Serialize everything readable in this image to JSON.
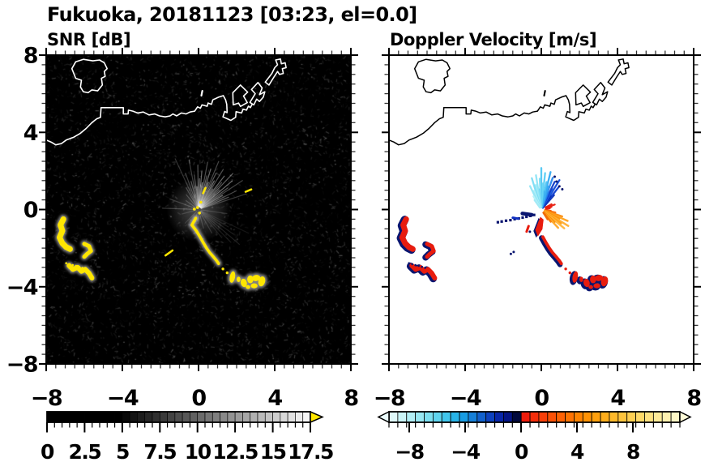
{
  "chart_data": {
    "type": "radar_ppi_pair",
    "suptitle": "Fukuoka, 20181123 [03:23, el=0.0]",
    "site": "Fukuoka",
    "date": "20181123",
    "time": "03:23",
    "elevation": "0.0",
    "panels": [
      {
        "id": "snr",
        "title": "SNR [dB]",
        "background": "#000000",
        "coast_color": "#ffffff",
        "echo_color": "#ffe600",
        "noise": "dark speckle",
        "streak_color": "#ffffff"
      },
      {
        "id": "velocity",
        "title": "Doppler Velocity [m/s]",
        "background": "#ffffff",
        "coast_color": "#000000",
        "echo_red": "#e81c0e",
        "echo_navy": "#0a1670",
        "fan_orange": "#ff9c14",
        "fan_blue": "#2888ee"
      }
    ],
    "axes": {
      "xlim": [
        -8,
        8
      ],
      "ylim": [
        -8,
        8
      ],
      "major_ticks": [
        -8,
        -4,
        0,
        4,
        8
      ],
      "minor_step": 0.5,
      "x_tick_labels": [
        "−8",
        "−4",
        "0",
        "4",
        "8"
      ],
      "y_tick_labels": [
        "8",
        "4",
        "0",
        "−4",
        "−8"
      ]
    },
    "radar_center": [
      0,
      0
    ],
    "colorbars": [
      {
        "panel": "snr",
        "min": 0,
        "max": 17.5,
        "segments": 35,
        "tick_values": [
          0,
          2.5,
          5,
          7.5,
          10,
          12.5,
          15,
          17.5
        ],
        "tick_labels": [
          "0",
          "2.5",
          "5",
          "7.5",
          "10",
          "12.5",
          "15",
          "17.5"
        ],
        "ramp": "grayscale black to white",
        "over_arrow_color": "#ffe600"
      },
      {
        "panel": "velocity",
        "min": -9.5,
        "max": 11,
        "segments": 33,
        "tick_values": [
          -8,
          -4,
          0,
          4,
          8
        ],
        "tick_labels": [
          "−8",
          "−4",
          "0",
          "4",
          "8"
        ],
        "cool_colors": [
          "#dff9fa",
          "#c9f4f7",
          "#b1eef5",
          "#97e7f2",
          "#7cdff0",
          "#5fd4ee",
          "#41c6ec",
          "#27b4e8",
          "#189ce2",
          "#157fd8",
          "#1160cc",
          "#0d41be",
          "#0826a8",
          "#041484",
          "#01093c"
        ],
        "warm_colors": [
          "#ef1c0c",
          "#f42d0a",
          "#f93f08",
          "#fc5106",
          "#fe6204",
          "#ff7302",
          "#ff8300",
          "#ff9204",
          "#ffa00d",
          "#ffad1a",
          "#ffb92a",
          "#ffc43d",
          "#ffcf52",
          "#ffd968",
          "#ffe280",
          "#ffea98",
          "#fff1b0",
          "#fff7c6"
        ],
        "under_arrow_color": "#eafbfc",
        "over_arrow_color": "#fffbd8"
      }
    ],
    "coast_main": [
      [
        -8,
        3.6
      ],
      [
        -7.75,
        3.5
      ],
      [
        -7.5,
        3.35
      ],
      [
        -7.2,
        3.42
      ],
      [
        -6.95,
        3.6
      ],
      [
        -6.55,
        3.75
      ],
      [
        -6.2,
        3.95
      ],
      [
        -5.9,
        4.2
      ],
      [
        -5.6,
        4.5
      ],
      [
        -5.35,
        4.7
      ],
      [
        -5.15,
        4.78
      ],
      [
        -5.12,
        5.28
      ],
      [
        -3.95,
        5.28
      ],
      [
        -3.95,
        4.95
      ],
      [
        -3.7,
        4.95
      ],
      [
        -3.68,
        5.15
      ],
      [
        -3.45,
        5.1
      ],
      [
        -3.2,
        5.0
      ],
      [
        -2.9,
        5.05
      ],
      [
        -2.6,
        4.9
      ],
      [
        -2.3,
        4.95
      ],
      [
        -2.05,
        4.85
      ],
      [
        -1.75,
        4.8
      ],
      [
        -1.5,
        4.85
      ],
      [
        -1.35,
        4.95
      ],
      [
        -1.15,
        4.85
      ],
      [
        -0.9,
        5.0
      ],
      [
        -0.65,
        4.95
      ],
      [
        -0.45,
        5.05
      ],
      [
        -0.2,
        5.1
      ],
      [
        -0.05,
        5.32
      ],
      [
        0.1,
        5.25
      ],
      [
        0.18,
        5.42
      ],
      [
        0.45,
        5.35
      ],
      [
        0.5,
        5.52
      ],
      [
        0.68,
        5.45
      ],
      [
        0.75,
        5.68
      ],
      [
        1.05,
        5.82
      ],
      [
        1.3,
        5.9
      ],
      [
        1.42,
        5.68
      ],
      [
        1.48,
        5.45
      ],
      [
        1.5,
        5.02
      ],
      [
        1.37,
        5.08
      ],
      [
        1.28,
        4.8
      ],
      [
        1.7,
        4.62
      ],
      [
        1.95,
        4.78
      ],
      [
        1.97,
        5.07
      ],
      [
        2.26,
        5.0
      ],
      [
        2.34,
        5.2
      ],
      [
        2.52,
        5.15
      ],
      [
        2.62,
        5.36
      ],
      [
        2.72,
        5.28
      ],
      [
        2.82,
        5.46
      ]
    ],
    "coast_island": [
      [
        -6.65,
        7.3
      ],
      [
        -6.45,
        7.65
      ],
      [
        -6.05,
        7.78
      ],
      [
        -5.55,
        7.7
      ],
      [
        -5.2,
        7.75
      ],
      [
        -4.95,
        7.6
      ],
      [
        -4.8,
        7.3
      ],
      [
        -4.95,
        7.15
      ],
      [
        -4.9,
        6.9
      ],
      [
        -5.1,
        6.8
      ],
      [
        -5.05,
        6.45
      ],
      [
        -5.3,
        6.15
      ],
      [
        -5.6,
        6.2
      ],
      [
        -5.8,
        6.05
      ],
      [
        -6.05,
        6.1
      ],
      [
        -6.2,
        6.35
      ],
      [
        -6.15,
        6.7
      ],
      [
        -6.45,
        6.8
      ],
      [
        -6.65,
        7.3
      ]
    ],
    "coast_harbor": [
      [
        [
          1.82,
          5.42
        ],
        [
          1.8,
          6.05
        ],
        [
          2.2,
          6.45
        ],
        [
          2.58,
          6.08
        ],
        [
          2.36,
          5.88
        ],
        [
          2.56,
          5.54
        ],
        [
          2.2,
          5.34
        ],
        [
          2.1,
          5.52
        ],
        [
          1.82,
          5.42
        ]
      ],
      [
        [
          2.7,
          5.55
        ],
        [
          2.98,
          6.0
        ],
        [
          2.78,
          6.22
        ],
        [
          3.12,
          6.58
        ],
        [
          3.34,
          6.3
        ],
        [
          3.2,
          5.95
        ],
        [
          3.48,
          6.1
        ],
        [
          3.4,
          5.82
        ],
        [
          3.2,
          5.6
        ],
        [
          3.05,
          5.72
        ],
        [
          2.9,
          5.42
        ],
        [
          2.7,
          5.55
        ]
      ],
      [
        [
          3.5,
          6.6
        ],
        [
          3.85,
          7.05
        ],
        [
          4.0,
          7.35
        ],
        [
          4.15,
          7.5
        ],
        [
          4.05,
          7.75
        ],
        [
          4.3,
          7.8
        ],
        [
          4.35,
          7.55
        ],
        [
          4.55,
          7.6
        ],
        [
          4.6,
          7.35
        ],
        [
          4.4,
          7.3
        ],
        [
          4.45,
          7.05
        ],
        [
          4.25,
          7.0
        ],
        [
          4.15,
          7.15
        ],
        [
          3.95,
          6.85
        ],
        [
          3.7,
          6.45
        ],
        [
          3.5,
          6.6
        ]
      ]
    ],
    "coast_islet": [
      [
        0.15,
        5.9
      ],
      [
        0.2,
        6.15
      ]
    ],
    "snr_fan_streaks": [
      [
        18,
        2.6,
        0.22
      ],
      [
        22,
        1.7,
        0.32
      ],
      [
        26,
        2.2,
        0.28
      ],
      [
        30,
        1.45,
        0.38
      ],
      [
        33,
        2.75,
        0.26
      ],
      [
        36,
        1.9,
        0.32
      ],
      [
        40,
        2.3,
        0.42
      ],
      [
        43,
        1.5,
        0.3
      ],
      [
        46,
        2.6,
        0.36
      ],
      [
        49,
        1.85,
        0.3
      ],
      [
        52,
        2.2,
        0.4
      ],
      [
        55,
        1.3,
        0.34
      ],
      [
        58,
        2.45,
        0.3
      ],
      [
        61,
        1.7,
        0.44
      ],
      [
        64,
        2.1,
        0.34
      ],
      [
        67,
        2.7,
        0.28
      ],
      [
        70,
        1.5,
        0.5
      ],
      [
        73,
        2.2,
        0.4
      ],
      [
        76,
        1.8,
        0.34
      ],
      [
        79,
        2.5,
        0.3
      ],
      [
        82,
        1.4,
        0.44
      ],
      [
        85,
        2.0,
        0.4
      ],
      [
        88,
        1.6,
        0.36
      ],
      [
        91,
        2.3,
        0.34
      ],
      [
        94,
        1.2,
        0.4
      ],
      [
        97,
        1.8,
        0.3
      ],
      [
        101,
        2.6,
        0.24
      ],
      [
        105,
        1.5,
        0.3
      ],
      [
        110,
        2.0,
        0.24
      ],
      [
        115,
        2.9,
        0.2
      ],
      [
        120,
        1.3,
        0.24
      ],
      [
        130,
        1.0,
        0.2
      ],
      [
        145,
        0.8,
        0.18
      ],
      [
        160,
        1.6,
        0.18
      ],
      [
        178,
        1.9,
        0.2
      ],
      [
        195,
        0.9,
        0.14
      ],
      [
        225,
        1.0,
        0.12
      ],
      [
        250,
        0.8,
        0.14
      ],
      [
        270,
        0.7,
        0.12
      ],
      [
        285,
        1.0,
        0.16
      ],
      [
        300,
        1.4,
        0.14
      ],
      [
        320,
        2.8,
        0.12
      ],
      [
        325,
        2.2,
        0.1
      ],
      [
        315,
        2.4,
        0.1
      ],
      [
        330,
        1.8,
        0.1
      ],
      [
        310,
        1.9,
        0.1
      ],
      [
        335,
        2.9,
        0.08
      ],
      [
        352,
        1.5,
        0.14
      ]
    ],
    "vel_cool_streaks": [
      [
        48,
        1.0,
        "#0a2cb0"
      ],
      [
        52,
        1.45,
        "#0d3fd0"
      ],
      [
        55,
        0.85,
        "#0a28a8"
      ],
      [
        58,
        1.8,
        "#1048d6"
      ],
      [
        61,
        1.2,
        "#1a5ee2"
      ],
      [
        64,
        1.6,
        "#0f3cc8"
      ],
      [
        67,
        0.95,
        "#2070e8"
      ],
      [
        70,
        1.75,
        "#2888ee"
      ],
      [
        73,
        1.25,
        "#38a2f0"
      ],
      [
        76,
        2.0,
        "#34aaf2"
      ],
      [
        79,
        1.45,
        "#4cc0f2"
      ],
      [
        82,
        0.95,
        "#2f9cee"
      ],
      [
        84,
        1.9,
        "#58ccf4"
      ],
      [
        87,
        1.35,
        "#6ad6f4"
      ],
      [
        90,
        2.15,
        "#50c6f2"
      ],
      [
        93,
        1.6,
        "#7eddf5"
      ],
      [
        96,
        1.05,
        "#62d2f3"
      ],
      [
        99,
        1.8,
        "#8ce4f6"
      ],
      [
        103,
        1.3,
        "#9ceaf7"
      ],
      [
        107,
        1.7,
        "#7adcf4"
      ],
      [
        111,
        1.05,
        "#aceef8"
      ],
      [
        116,
        1.35,
        "#90e5f5"
      ],
      [
        121,
        0.8,
        "#b6f1f9"
      ],
      [
        126,
        0.6,
        "#a0e9f6"
      ]
    ],
    "vel_warm_streaks": [
      [
        -8,
        0.5,
        "#f25c04"
      ],
      [
        -12,
        0.75,
        "#f86c06"
      ],
      [
        -18,
        1.15,
        "#fb8c0e"
      ],
      [
        -23,
        1.5,
        "#ffa21c"
      ],
      [
        -27,
        1.05,
        "#fb9208"
      ],
      [
        -31,
        1.65,
        "#ffae30"
      ],
      [
        -35,
        1.25,
        "#ff9d12"
      ],
      [
        -39,
        1.55,
        "#ffb63e"
      ],
      [
        -43,
        0.95,
        "#fb8f06"
      ],
      [
        -47,
        1.3,
        "#ffa828"
      ],
      [
        -52,
        0.8,
        "#f87c04"
      ],
      [
        -57,
        0.6,
        "#f06a06"
      ]
    ],
    "vel_red_mini_streaks": [
      [
        8,
        0.45
      ],
      [
        14,
        0.55
      ],
      [
        20,
        0.75
      ],
      [
        27,
        0.6
      ]
    ],
    "echo_chain_main": [
      [
        -0.15,
        -0.45
      ],
      [
        -0.35,
        -0.8
      ],
      [
        -0.12,
        -1.1
      ],
      [
        0.08,
        -1.42
      ],
      [
        0.25,
        -1.72
      ],
      [
        0.42,
        -2.0
      ],
      [
        0.58,
        -2.22
      ],
      [
        0.78,
        -2.45
      ],
      [
        0.95,
        -2.65
      ],
      [
        1.05,
        -2.8
      ]
    ],
    "echo_chain_dots": [
      [
        1.28,
        -3.08
      ],
      [
        1.5,
        -3.28
      ]
    ],
    "echo_chain_blobs": [
      {
        "x": 1.78,
        "y": -3.5,
        "rx": 0.14,
        "ry": 0.3,
        "rot": 10
      },
      {
        "x": 2.1,
        "y": -3.62,
        "rx": 0.1,
        "ry": 0.14,
        "rot": 0
      },
      {
        "x": 2.38,
        "y": -3.8,
        "rx": 0.16,
        "ry": 0.22,
        "rot": -15
      },
      {
        "x": 2.72,
        "y": -3.62,
        "rx": 0.16,
        "ry": 0.2,
        "rot": 0
      },
      {
        "x": 3.02,
        "y": -3.55,
        "rx": 0.22,
        "ry": 0.16,
        "rot": -10
      },
      {
        "x": 3.32,
        "y": -3.72,
        "rx": 0.18,
        "ry": 0.26,
        "rot": 15
      },
      {
        "x": 2.92,
        "y": -3.95,
        "rx": 0.18,
        "ry": 0.13,
        "rot": 0
      },
      {
        "x": 2.6,
        "y": -4.02,
        "rx": 0.12,
        "ry": 0.1,
        "rot": 0
      }
    ],
    "west_cluster_strokes": [
      {
        "pts": [
          [
            -7.1,
            -0.5
          ],
          [
            -7.25,
            -0.8
          ],
          [
            -7.15,
            -1.1
          ],
          [
            -7.3,
            -1.45
          ],
          [
            -7.15,
            -1.75
          ],
          [
            -6.95,
            -1.95
          ],
          [
            -6.75,
            -2.05
          ]
        ],
        "w": 7
      },
      {
        "pts": [
          [
            -6.0,
            -1.78
          ],
          [
            -5.75,
            -1.9
          ],
          [
            -5.65,
            -2.15
          ],
          [
            -5.85,
            -2.3
          ],
          [
            -6.0,
            -2.45
          ]
        ],
        "w": 5
      },
      {
        "pts": [
          [
            -6.8,
            -2.9
          ],
          [
            -6.6,
            -3.1
          ],
          [
            -6.35,
            -3.0
          ],
          [
            -6.15,
            -3.2
          ],
          [
            -5.95,
            -3.1
          ],
          [
            -5.75,
            -3.3
          ],
          [
            -5.6,
            -3.55
          ]
        ],
        "w": 6
      }
    ],
    "west_cluster_dots": [
      [
        -6.95,
        -2.78
      ],
      [
        -6.78,
        -2.83
      ],
      [
        -6.61,
        -2.88
      ],
      [
        -6.44,
        -2.92
      ],
      [
        -6.27,
        -2.97
      ],
      [
        -6.1,
        -3.02
      ]
    ],
    "isolated_dash": {
      "x": -1.55,
      "y": -2.25,
      "len": 0.45,
      "rot_deg": 35
    },
    "snr_center_dots": [
      [
        -0.05,
        0.1
      ],
      [
        0.12,
        0.38
      ],
      [
        -0.22,
        0.02
      ],
      [
        0.05,
        -0.18
      ]
    ],
    "snr_center_dashes": [
      {
        "x": 0.3,
        "y": 0.98,
        "len": 0.3,
        "rot_deg": 65
      },
      {
        "x": 2.62,
        "y": 0.98,
        "len": 0.32,
        "rot_deg": 22
      }
    ],
    "vel_red_wedge": [
      [
        -0.05,
        -0.38
      ],
      [
        -0.32,
        -1.05
      ],
      [
        -0.18,
        -1.4
      ],
      [
        0.06,
        -1.02
      ],
      [
        0.12,
        -0.52
      ]
    ],
    "vel_navy_trail": [
      [
        -0.38,
        -0.28
      ],
      [
        -0.58,
        -0.33
      ],
      [
        -0.78,
        -0.38
      ],
      [
        -0.98,
        -0.42
      ],
      [
        -1.18,
        -0.46
      ],
      [
        -1.4,
        -0.5
      ],
      [
        -1.62,
        -0.55
      ],
      [
        -1.85,
        -0.58
      ],
      [
        -2.08,
        -0.62
      ],
      [
        -2.28,
        -0.66
      ]
    ],
    "vel_navy_dash": {
      "x": -0.75,
      "y": -0.24,
      "len": 0.5,
      "rot_deg": -8
    },
    "vel_blue_dash": {
      "x": -1.35,
      "y": -0.45,
      "len": 0.3,
      "rot_deg": -10
    },
    "vel_red_dash": {
      "x": -0.72,
      "y": -1.0,
      "len": 0.3,
      "rot_deg": 70
    },
    "vel_navy_specks": [
      [
        0.8,
        1.45
      ],
      [
        0.95,
        1.2
      ],
      [
        1.1,
        1.05
      ],
      [
        0.7,
        1.7
      ],
      [
        -1.6,
        -2.3
      ],
      [
        -1.45,
        -2.2
      ],
      [
        -0.6,
        -1.15
      ]
    ]
  }
}
